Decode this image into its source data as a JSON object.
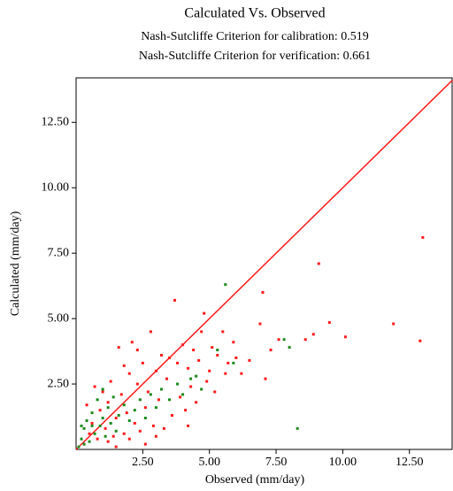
{
  "chart_data": {
    "type": "scatter",
    "title": "Calculated  Vs. Observed",
    "subtitles": [
      {
        "text": "Nash-Sutcliffe Criterion for calibration: 0.519",
        "color": "#ff1a1a"
      },
      {
        "text": "Nash-Sutcliffe Criterion for verification: 0.661",
        "color": "#1a8a1a"
      }
    ],
    "x_label": "Observed (mm/day)",
    "y_label": "Calculated (mm/day)",
    "xlim": [
      0,
      14.1
    ],
    "ylim": [
      0,
      14.2
    ],
    "xticks": [
      {
        "value": 2.5,
        "label": "2.50"
      },
      {
        "value": 5,
        "label": "5.00"
      },
      {
        "value": 7.5,
        "label": "7.50"
      },
      {
        "value": 10,
        "label": "10.00"
      },
      {
        "value": 12.5,
        "label": "12.50"
      }
    ],
    "yticks": [
      {
        "value": 2.5,
        "label": "2.50"
      },
      {
        "value": 5,
        "label": "5.00"
      },
      {
        "value": 7.5,
        "label": "7.50"
      },
      {
        "value": 10,
        "label": "10.00"
      },
      {
        "value": 12.5,
        "label": "12.50"
      }
    ],
    "line": {
      "color": "#ff1a1a",
      "x": [
        0,
        14.1
      ],
      "values": [
        0,
        14.1
      ]
    },
    "series": [
      {
        "color": "#ff1a1a",
        "x": [
          0.3,
          0.5,
          0.6,
          0.8,
          0.9,
          1.0,
          1.1,
          1.2,
          1.3,
          1.4,
          1.5,
          1.6,
          1.7,
          1.8,
          1.9,
          2.0,
          2.1,
          2.2,
          2.3,
          2.4,
          2.5,
          2.6,
          2.7,
          2.8,
          2.9,
          3.0,
          3.1,
          3.2,
          3.3,
          3.4,
          3.5,
          3.6,
          3.7,
          3.8,
          3.9,
          4.0,
          4.1,
          4.2,
          4.3,
          4.4,
          4.5,
          4.6,
          4.7,
          4.8,
          4.9,
          5.0,
          5.1,
          5.2,
          5.3,
          5.5,
          5.6,
          5.7,
          5.9,
          6.0,
          6.2,
          6.5,
          6.9,
          7.0,
          7.1,
          7.3,
          7.6,
          8.6,
          8.9,
          9.1,
          9.5,
          10.1,
          11.9,
          12.9,
          13.0,
          1.2,
          2.0,
          3.0,
          0.4,
          0.7,
          1.8,
          2.3,
          4.2,
          1.5,
          2.6
        ],
        "values": [
          0.2,
          0.6,
          1.0,
          0.4,
          1.5,
          2.2,
          0.8,
          1.8,
          2.6,
          0.5,
          1.2,
          3.9,
          2.1,
          0.6,
          1.4,
          2.9,
          4.1,
          1.0,
          2.5,
          0.7,
          3.3,
          1.6,
          2.2,
          4.5,
          0.9,
          3.0,
          1.9,
          3.6,
          0.8,
          2.7,
          3.5,
          1.3,
          5.7,
          3.3,
          2.0,
          4.0,
          1.5,
          3.1,
          2.4,
          3.8,
          1.8,
          3.4,
          4.5,
          5.2,
          2.6,
          3.0,
          3.9,
          2.2,
          3.6,
          4.5,
          2.9,
          3.3,
          4.1,
          3.5,
          2.9,
          3.4,
          4.8,
          6.0,
          2.7,
          3.8,
          4.2,
          4.2,
          4.4,
          7.1,
          4.85,
          4.3,
          4.8,
          4.15,
          8.1,
          0.3,
          0.4,
          0.5,
          1.7,
          2.4,
          3.2,
          3.8,
          0.9,
          0.1,
          0.2
        ]
      },
      {
        "color": "#1a8a1a",
        "x": [
          0.1,
          0.2,
          0.3,
          0.4,
          0.5,
          0.6,
          0.7,
          0.8,
          0.9,
          1.0,
          1.1,
          1.2,
          1.3,
          1.4,
          1.5,
          1.6,
          1.8,
          2.0,
          2.2,
          2.4,
          2.6,
          2.8,
          3.0,
          3.2,
          3.5,
          3.8,
          4.0,
          4.3,
          4.5,
          4.7,
          5.3,
          5.6,
          5.9,
          7.8,
          8.0,
          8.3,
          0.3,
          0.6,
          1.0,
          0.2
        ],
        "values": [
          0.1,
          0.4,
          0.8,
          1.1,
          0.3,
          1.4,
          0.6,
          1.9,
          0.9,
          1.2,
          0.5,
          1.6,
          1.0,
          2.0,
          0.7,
          1.3,
          1.7,
          1.1,
          1.5,
          1.9,
          1.2,
          2.1,
          1.6,
          2.3,
          1.9,
          2.5,
          2.1,
          2.7,
          2.8,
          2.3,
          3.8,
          6.3,
          3.3,
          4.2,
          3.9,
          0.8,
          0.2,
          0.9,
          2.3,
          0.9
        ]
      }
    ]
  }
}
